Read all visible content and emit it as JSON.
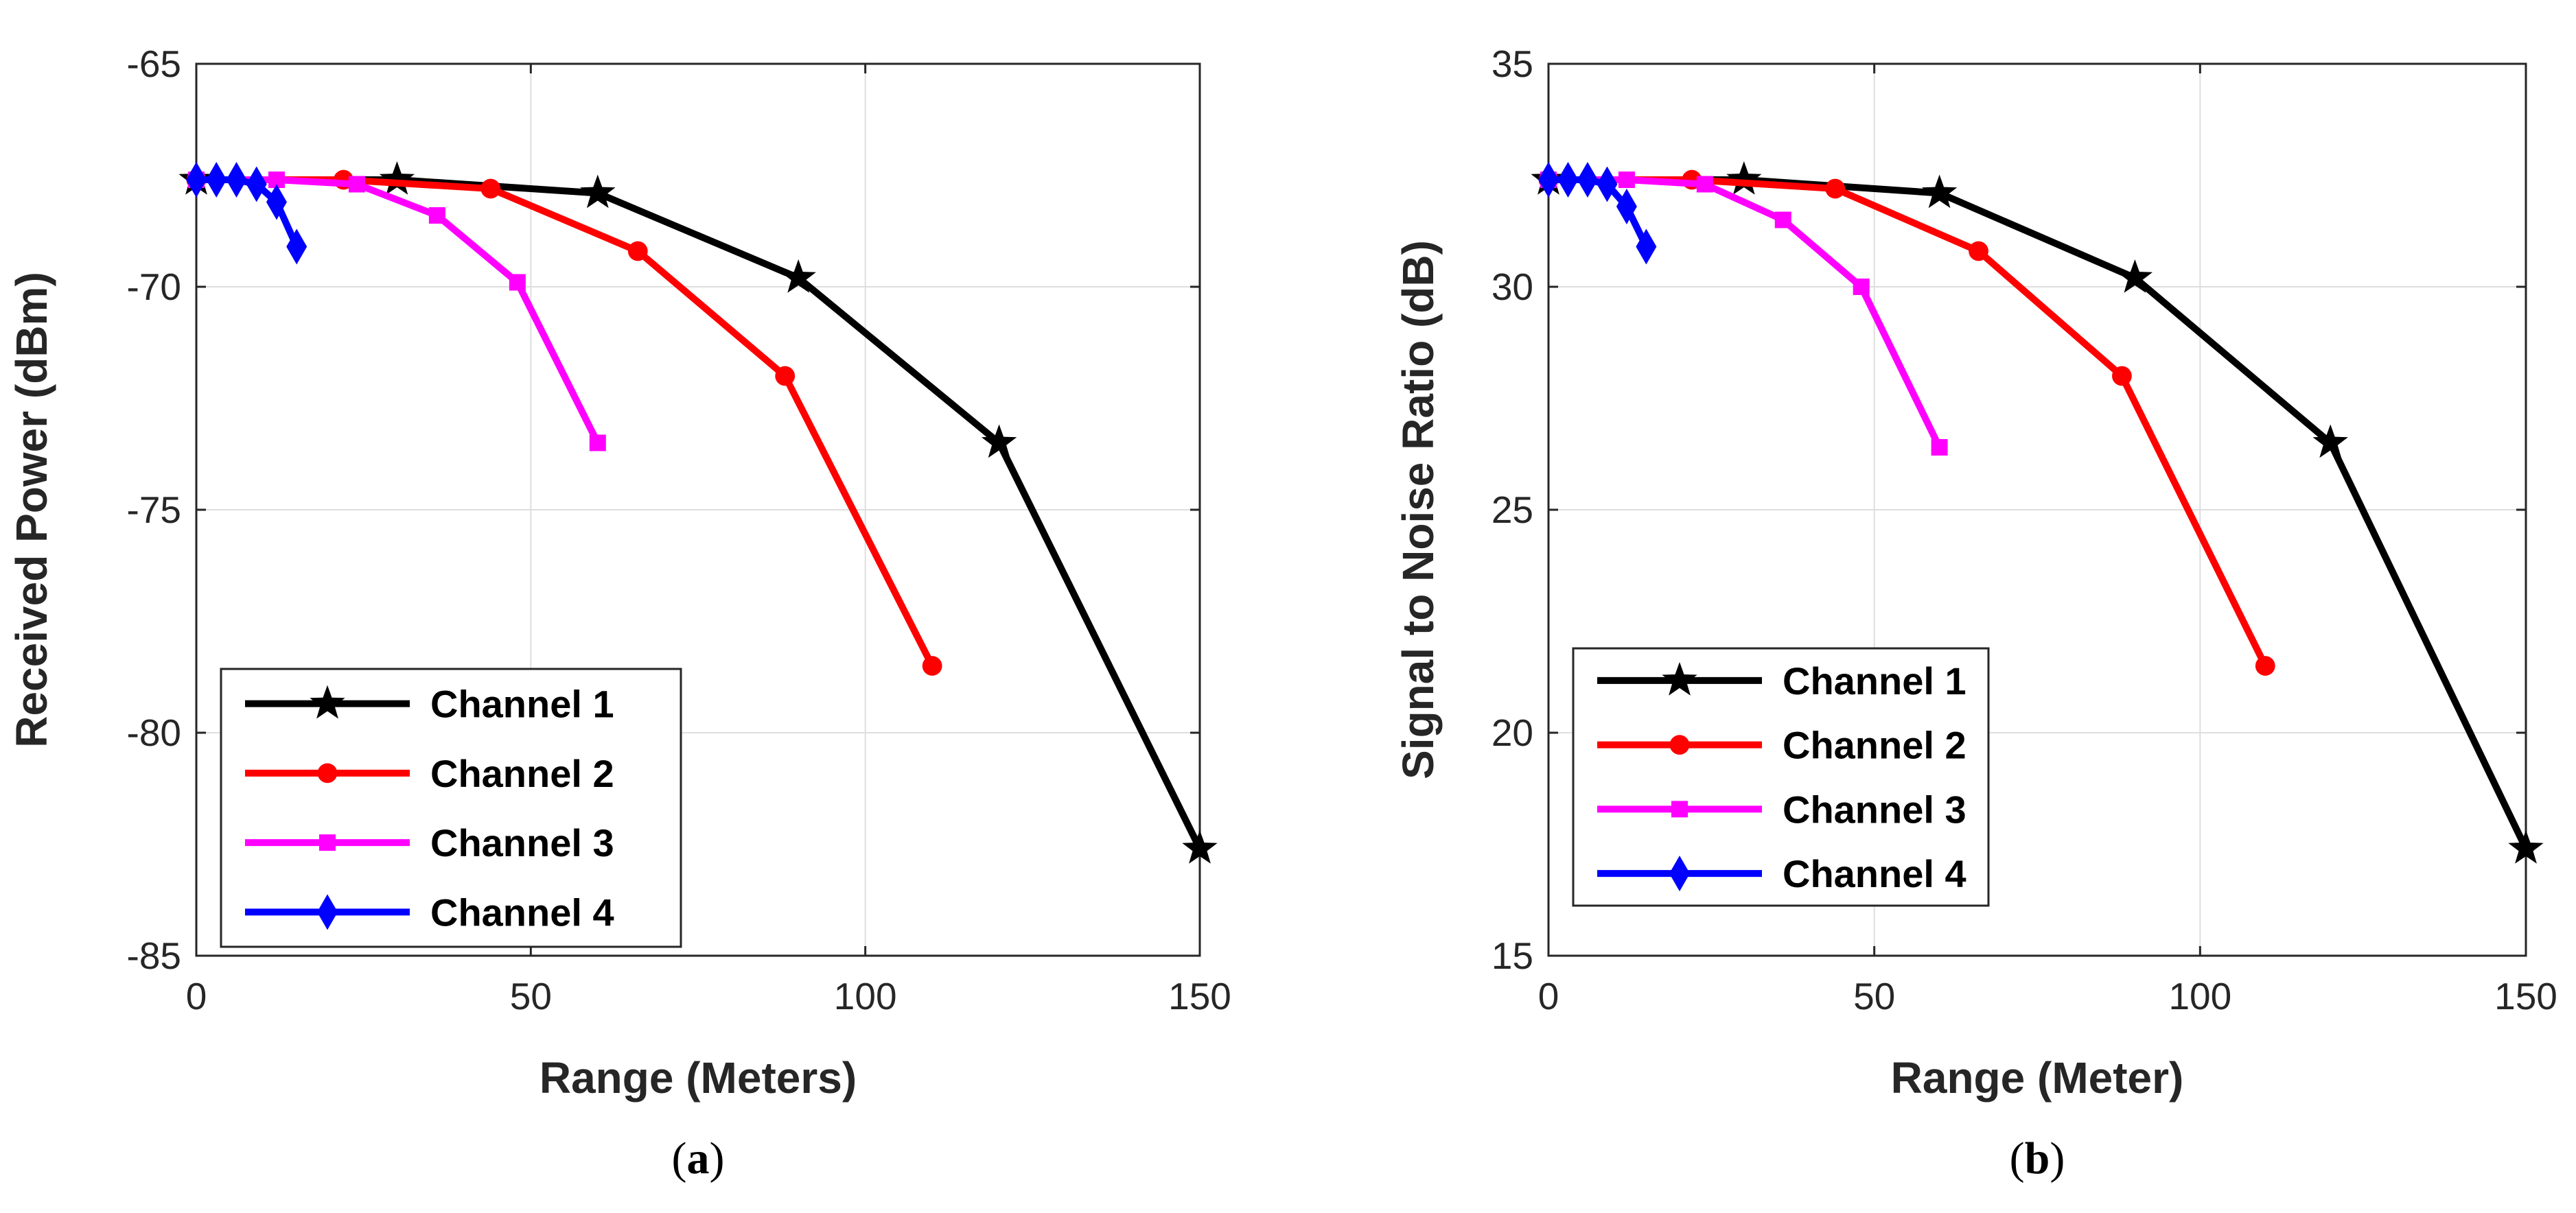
{
  "chart_data": [
    {
      "type": "line",
      "panel": "a",
      "caption": {
        "open": "(",
        "letter": "a",
        "close": ")"
      },
      "xlabel": "Range (Meters)",
      "ylabel": "Received Power (dBm)",
      "xlim": [
        0,
        150
      ],
      "ylim": [
        -85,
        -65
      ],
      "xticks": [
        "0",
        "50",
        "100",
        "150"
      ],
      "yticks": [
        "-85",
        "-80",
        "-75",
        "-70",
        "-65"
      ],
      "grid": true,
      "legend_position": "bottom-left",
      "series": [
        {
          "name": "Channel 1",
          "color": "#000000",
          "marker": "star",
          "x": [
            0,
            30,
            60,
            90,
            120,
            150
          ],
          "y": [
            -67.6,
            -67.6,
            -67.9,
            -69.8,
            -73.5,
            -82.6
          ]
        },
        {
          "name": "Channel 2",
          "color": "#ff0000",
          "marker": "circle",
          "x": [
            0,
            22,
            44,
            66,
            88,
            110
          ],
          "y": [
            -67.6,
            -67.6,
            -67.8,
            -69.2,
            -72.0,
            -78.5
          ]
        },
        {
          "name": "Channel 3",
          "color": "#ff00ff",
          "marker": "square",
          "x": [
            0,
            12,
            24,
            36,
            48,
            60
          ],
          "y": [
            -67.6,
            -67.6,
            -67.7,
            -68.4,
            -69.9,
            -73.5
          ]
        },
        {
          "name": "Channel 4",
          "color": "#0000ff",
          "marker": "diamond",
          "x": [
            0,
            3,
            6,
            9,
            12,
            15
          ],
          "y": [
            -67.6,
            -67.6,
            -67.6,
            -67.7,
            -68.1,
            -69.1
          ]
        }
      ]
    },
    {
      "type": "line",
      "panel": "b",
      "caption": {
        "open": "(",
        "letter": "b",
        "close": ")"
      },
      "xlabel": "Range (Meter)",
      "ylabel": "Signal to Noise Ratio (dB)",
      "xlim": [
        0,
        150
      ],
      "ylim": [
        15,
        35
      ],
      "xticks": [
        "0",
        "50",
        "100",
        "150"
      ],
      "yticks": [
        "15",
        "20",
        "25",
        "30",
        "35"
      ],
      "grid": true,
      "legend_position": "bottom-left",
      "series": [
        {
          "name": "Channel 1",
          "color": "#000000",
          "marker": "star",
          "x": [
            0,
            30,
            60,
            90,
            120,
            150
          ],
          "y": [
            32.4,
            32.4,
            32.1,
            30.2,
            26.5,
            17.4
          ]
        },
        {
          "name": "Channel 2",
          "color": "#ff0000",
          "marker": "circle",
          "x": [
            0,
            22,
            44,
            66,
            88,
            110
          ],
          "y": [
            32.4,
            32.4,
            32.2,
            30.8,
            28.0,
            21.5
          ]
        },
        {
          "name": "Channel 3",
          "color": "#ff00ff",
          "marker": "square",
          "x": [
            0,
            12,
            24,
            36,
            48,
            60
          ],
          "y": [
            32.4,
            32.4,
            32.3,
            31.5,
            30.0,
            26.4
          ]
        },
        {
          "name": "Channel 4",
          "color": "#0000ff",
          "marker": "diamond",
          "x": [
            0,
            3,
            6,
            9,
            12,
            15
          ],
          "y": [
            32.4,
            32.4,
            32.4,
            32.3,
            31.8,
            30.9
          ]
        }
      ]
    }
  ]
}
